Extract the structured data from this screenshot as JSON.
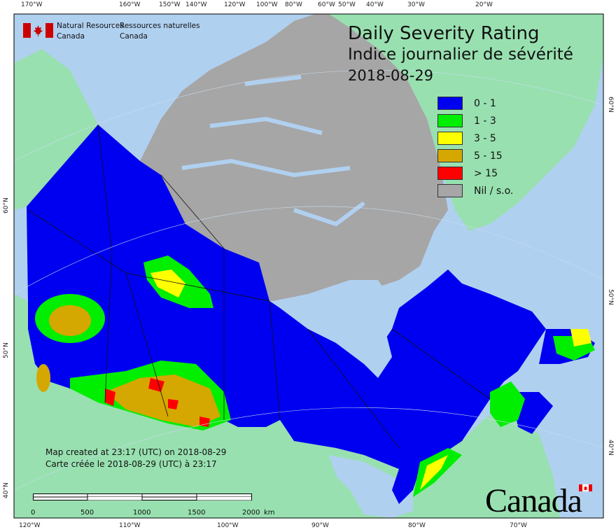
{
  "agency": {
    "name_en_1": "Natural Resources",
    "name_en_2": "Canada",
    "name_fr_1": "Ressources naturelles",
    "name_fr_2": "Canada"
  },
  "title": {
    "en": "Daily Severity Rating",
    "fr": "Indice journalier de sévérité",
    "date": "2018-08-29"
  },
  "legend": [
    {
      "label": "0 - 1",
      "color": "#0000f0"
    },
    {
      "label": "1 - 3",
      "color": "#00ee00"
    },
    {
      "label": "3 - 5",
      "color": "#ffff00"
    },
    {
      "label": "5 - 15",
      "color": "#d4a800"
    },
    {
      "label": "> 15",
      "color": "#ff0000"
    },
    {
      "label": "Nil / s.o.",
      "color": "#a6a6a6"
    }
  ],
  "created": {
    "en": "Map created at 23:17 (UTC) on 2018-08-29",
    "fr": "Carte créée le 2018-08-29 (UTC) à 23:17"
  },
  "scale_bar": {
    "labels": [
      "0",
      "500",
      "1000",
      "1500",
      "2000"
    ],
    "unit": "km"
  },
  "graticule": {
    "top": [
      "170°W",
      "160°W",
      "150°W",
      "140°W",
      "120°W",
      "100°W",
      "80°W",
      "60°W",
      "50°W",
      "40°W",
      "30°W",
      "20°W"
    ],
    "bottom": [
      "120°W",
      "110°W",
      "100°W",
      "90°W",
      "80°W",
      "70°W"
    ],
    "left": [
      "60°N",
      "50°N",
      "40°N"
    ],
    "right": [
      "60°N",
      "50°N",
      "40°N"
    ]
  },
  "wordmark": "Canada",
  "colors": {
    "ocean": "#b0d0f0",
    "foreign_land": "#98e0b0"
  }
}
